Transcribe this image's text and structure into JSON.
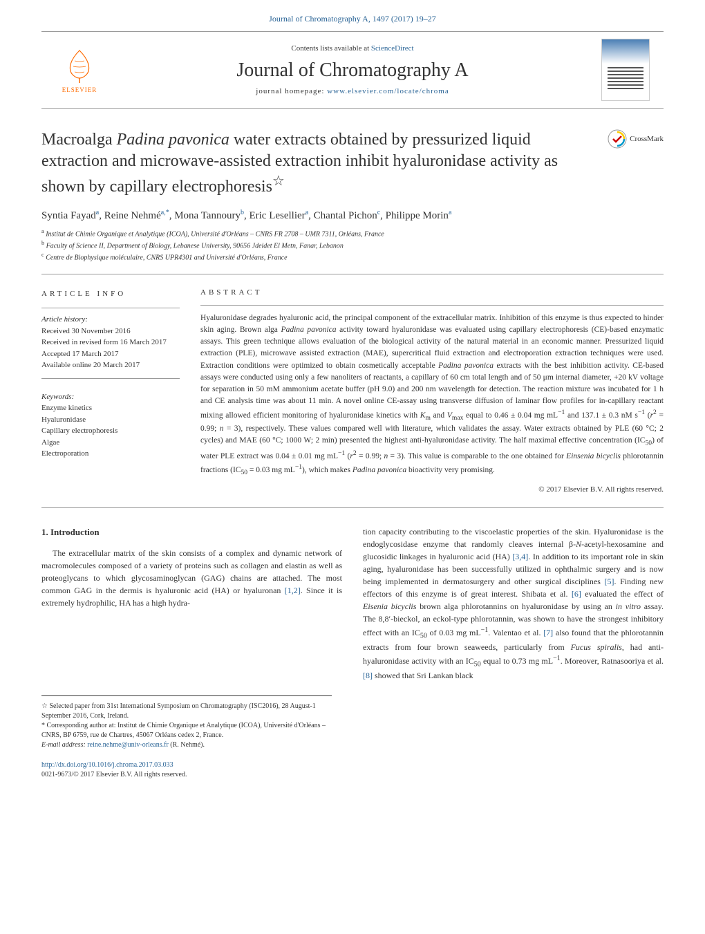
{
  "header": {
    "citation": "Journal of Chromatography A, 1497 (2017) 19–27",
    "contents_prefix": "Contents lists available at ",
    "contents_link": "ScienceDirect",
    "journal_title": "Journal of Chromatography A",
    "homepage_prefix": "journal homepage: ",
    "homepage_link": "www.elsevier.com/locate/chroma",
    "publisher": "ELSEVIER",
    "crossmark": "CrossMark"
  },
  "article": {
    "title_part1": "Macroalga ",
    "title_italic1": "Padina pavonica",
    "title_part2": " water extracts obtained by pressurized liquid extraction and microwave-assisted extraction inhibit hyaluronidase activity as shown by capillary electrophoresis",
    "title_footnote_marker": "☆",
    "authors_html": "Syntia Fayad<sup>a</sup>, Reine Nehmé<sup>a,*</sup>, Mona Tannoury<sup>b</sup>, Eric Lesellier<sup>a</sup>, Chantal Pichon<sup>c</sup>, Philippe Morin<sup>a</sup>",
    "affiliations": {
      "a": "Institut de Chimie Organique et Analytique (ICOA), Université d'Orléans – CNRS FR 2708 – UMR 7311, Orléans, France",
      "b": "Faculty of Science II, Department of Biology, Lebanese University, 90656 Jdeidet El Metn, Fanar, Lebanon",
      "c": "Centre de Biophysique moléculaire, CNRS UPR4301 and Université d'Orléans, France"
    }
  },
  "info": {
    "heading": "article info",
    "history_label": "Article history:",
    "received": "Received 30 November 2016",
    "revised": "Received in revised form 16 March 2017",
    "accepted": "Accepted 17 March 2017",
    "online": "Available online 20 March 2017",
    "keywords_label": "Keywords:",
    "keywords": [
      "Enzyme kinetics",
      "Hyaluronidase",
      "Capillary electrophoresis",
      "Algae",
      "Electroporation"
    ]
  },
  "abstract": {
    "heading": "abstract",
    "text": "Hyaluronidase degrades hyaluronic acid, the principal component of the extracellular matrix. Inhibition of this enzyme is thus expected to hinder skin aging. Brown alga Padina pavonica activity toward hyaluronidase was evaluated using capillary electrophoresis (CE)-based enzymatic assays. This green technique allows evaluation of the biological activity of the natural material in an economic manner. Pressurized liquid extraction (PLE), microwave assisted extraction (MAE), supercritical fluid extraction and electroporation extraction techniques were used. Extraction conditions were optimized to obtain cosmetically acceptable Padina pavonica extracts with the best inhibition activity. CE-based assays were conducted using only a few nanoliters of reactants, a capillary of 60 cm total length and of 50 μm internal diameter, +20 kV voltage for separation in 50 mM ammonium acetate buffer (pH 9.0) and 200 nm wavelength for detection. The reaction mixture was incubated for 1 h and CE analysis time was about 11 min. A novel online CE-assay using transverse diffusion of laminar flow profiles for in-capillary reactant mixing allowed efficient monitoring of hyaluronidase kinetics with Km and Vmax equal to 0.46 ± 0.04 mg mL−1 and 137.1 ± 0.3 nM s−1 (r2 = 0.99; n = 3), respectively. These values compared well with literature, which validates the assay. Water extracts obtained by PLE (60 °C; 2 cycles) and MAE (60 °C; 1000 W; 2 min) presented the highest anti-hyaluronidase activity. The half maximal effective concentration (IC50) of water PLE extract was 0.04 ± 0.01 mg mL−1 (r2 = 0.99; n = 3). This value is comparable to the one obtained for Einsenia bicyclis phlorotannin fractions (IC50 = 0.03 mg mL−1), which makes Padina pavonica bioactivity very promising.",
    "copyright": "© 2017 Elsevier B.V. All rights reserved."
  },
  "body": {
    "section_heading": "1. Introduction",
    "col1_p1": "The extracellular matrix of the skin consists of a complex and dynamic network of macromolecules composed of a variety of proteins such as collagen and elastin as well as proteoglycans to which glycosaminoglycan (GAG) chains are attached. The most common GAG in the dermis is hyaluronic acid (HA) or hyaluronan [1,2]. Since it is extremely hydrophilic, HA has a high hydra-",
    "col2_p1": "tion capacity contributing to the viscoelastic properties of the skin. Hyaluronidase is the endoglycosidase enzyme that randomly cleaves internal β-N-acetyl-hexosamine and glucosidic linkages in hyaluronic acid (HA) [3,4]. In addition to its important role in skin aging, hyaluronidase has been successfully utilized in ophthalmic surgery and is now being implemented in dermatosurgery and other surgical disciplines [5]. Finding new effectors of this enzyme is of great interest. Shibata et al. [6] evaluated the effect of Eisenia bicyclis brown alga phlorotannins on hyaluronidase by using an in vitro assay. The 8,8′-bieckol, an eckol-type phlorotannin, was shown to have the strongest inhibitory effect with an IC50 of 0.03 mg mL−1. Valentao et al. [7] also found that the phlorotannin extracts from four brown seaweeds, particularly from Fucus spiralis, had anti-hyaluronidase activity with an IC50 equal to 0.73 mg mL−1. Moreover, Ratnasooriya et al. [8] showed that Sri Lankan black"
  },
  "footnotes": {
    "note_star": "Selected paper from 31st International Symposium on Chromatography (ISC2016), 28 August-1 September 2016, Cork, Ireland.",
    "corr_label": "Corresponding author at:",
    "corr_text": " Institut de Chimie Organique et Analytique (ICOA), Université d'Orléans – CNRS, BP 6759, rue de Chartres, 45067 Orléans cedex 2, France.",
    "email_label": "E-mail address: ",
    "email": "reine.nehme@univ-orleans.fr",
    "email_suffix": " (R. Nehmé)."
  },
  "footer": {
    "doi": "http://dx.doi.org/10.1016/j.chroma.2017.03.033",
    "issn_line": "0021-9673/© 2017 Elsevier B.V. All rights reserved."
  },
  "colors": {
    "link": "#2a6496",
    "elsevier_orange": "#ff6b00",
    "text": "#333333",
    "rule": "#999999"
  }
}
